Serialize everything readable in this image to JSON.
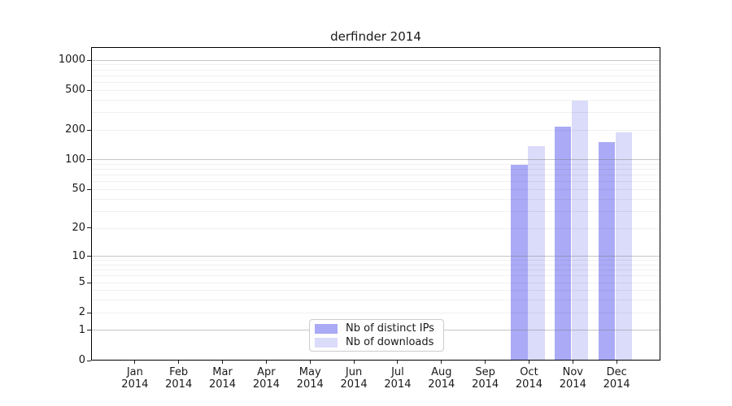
{
  "title": "derfinder 2014",
  "chart_data": {
    "type": "bar",
    "title": "derfinder 2014",
    "x_months": [
      "Jan",
      "Feb",
      "Mar",
      "Apr",
      "May",
      "Jun",
      "Jul",
      "Aug",
      "Sep",
      "Oct",
      "Nov",
      "Dec"
    ],
    "x_year": "2014",
    "y_ticks": [
      0,
      1,
      2,
      5,
      10,
      20,
      50,
      100,
      200,
      500,
      1000
    ],
    "y_scale": "log10(1+x)",
    "grid": "horizontal",
    "legend_position": "inside-bottom-center",
    "series": [
      {
        "name": "Nb of distinct IPs",
        "color": "#aaaaf6",
        "values": [
          0,
          0,
          0,
          0,
          0,
          0,
          0,
          0,
          0,
          89,
          215,
          151
        ]
      },
      {
        "name": "Nb of downloads",
        "color": "#dbdbfa",
        "values": [
          0,
          0,
          0,
          0,
          0,
          0,
          0,
          0,
          0,
          137,
          390,
          188
        ]
      }
    ]
  }
}
